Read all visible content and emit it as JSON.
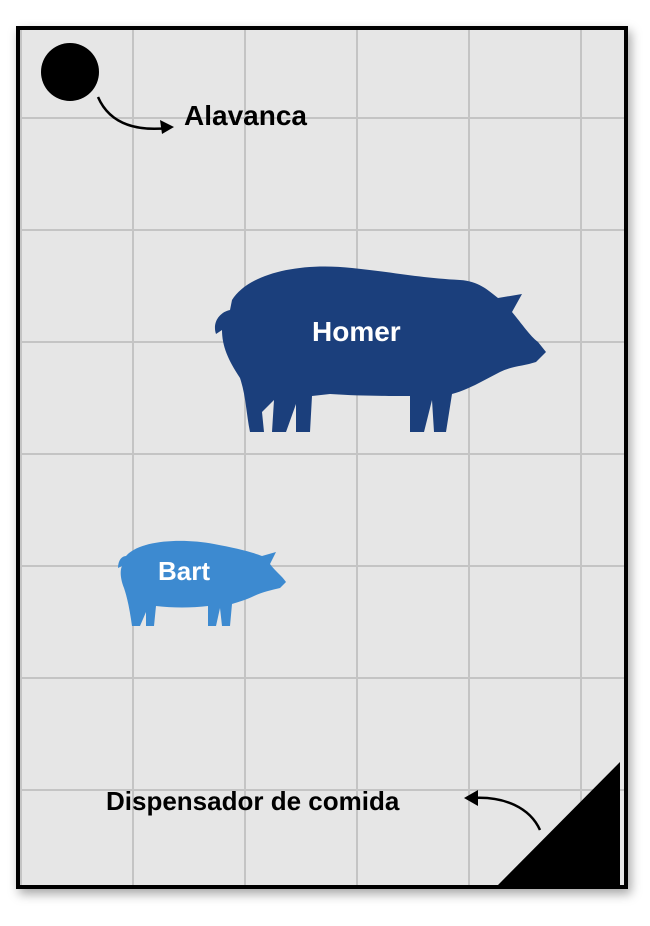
{
  "labels": {
    "lever": "Alavanca",
    "feeder": "Dispensador de comida"
  },
  "pigs": [
    {
      "name": "Homer",
      "color": "#1b3f7c"
    },
    {
      "name": "Bart",
      "color": "#3d8ad0"
    }
  ],
  "colors": {
    "lever": "#000000",
    "feeder": "#000000",
    "floor": "#e6e6e6",
    "grid": "#c4c4c4",
    "border": "#000000"
  },
  "icons": {
    "lever": "circle-icon",
    "feeder": "triangle-icon",
    "homer": "pig-icon",
    "bart": "pig-icon"
  }
}
